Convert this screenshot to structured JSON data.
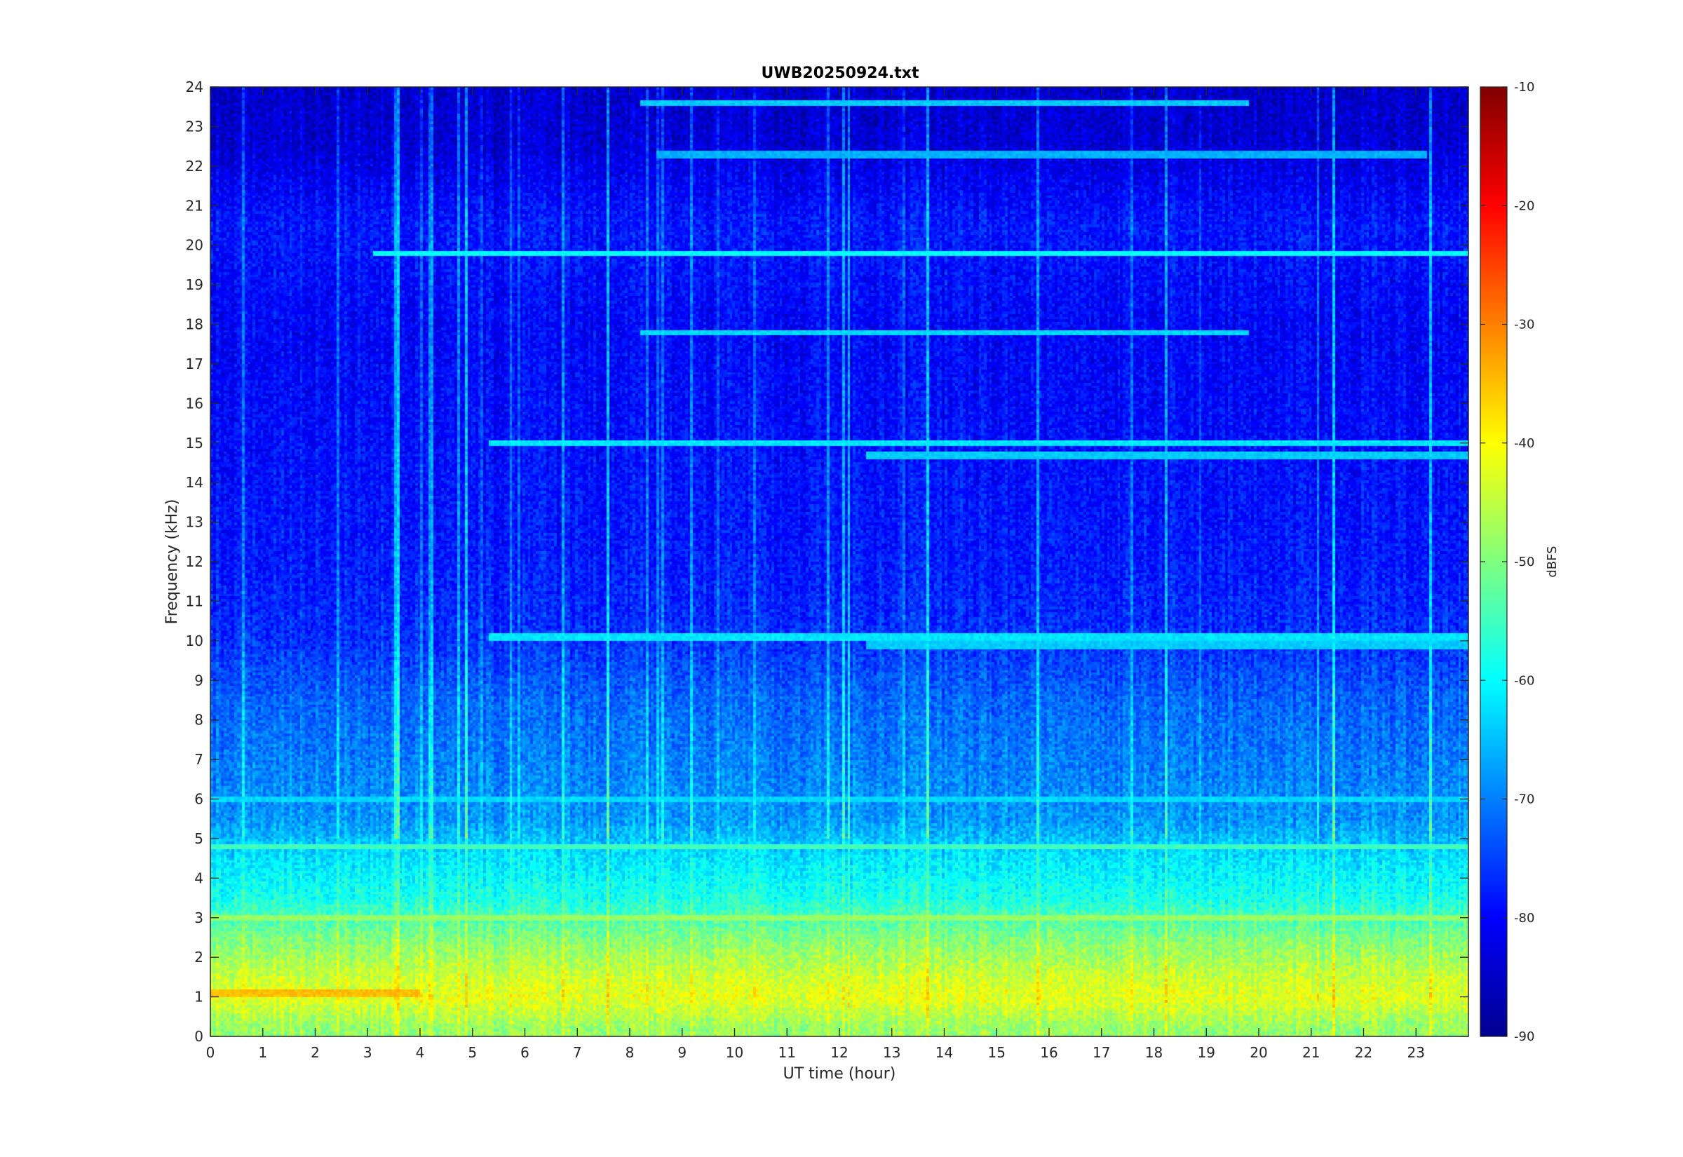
{
  "chart_data": {
    "type": "heatmap",
    "title": "UWB20250924.txt",
    "xlabel": "UT time (hour)",
    "ylabel": "Frequency (kHz)",
    "xlim": [
      0,
      24
    ],
    "ylim": [
      0,
      24
    ],
    "x_ticks": [
      "0",
      "1",
      "2",
      "3",
      "4",
      "5",
      "6",
      "7",
      "8",
      "9",
      "10",
      "11",
      "12",
      "13",
      "14",
      "15",
      "16",
      "17",
      "18",
      "19",
      "20",
      "21",
      "22",
      "23"
    ],
    "y_ticks": [
      "0",
      "1",
      "2",
      "3",
      "4",
      "5",
      "6",
      "7",
      "8",
      "9",
      "10",
      "11",
      "12",
      "13",
      "14",
      "15",
      "16",
      "17",
      "18",
      "19",
      "20",
      "21",
      "22",
      "23",
      "24"
    ],
    "colorbar": {
      "label": "dBFS",
      "range": [
        -90,
        -10
      ],
      "ticks": [
        "-10",
        "-20",
        "-30",
        "-40",
        "-50",
        "-60",
        "-70",
        "-80",
        "-90"
      ],
      "colormap": "jet"
    },
    "frequency_profile_dbfs": [
      {
        "freq_khz": 0.25,
        "level": -48
      },
      {
        "freq_khz": 1.0,
        "level": -42
      },
      {
        "freq_khz": 1.5,
        "level": -44
      },
      {
        "freq_khz": 2.5,
        "level": -50
      },
      {
        "freq_khz": 3.5,
        "level": -58
      },
      {
        "freq_khz": 4.5,
        "level": -62
      },
      {
        "freq_khz": 5.5,
        "level": -68
      },
      {
        "freq_khz": 7,
        "level": -70
      },
      {
        "freq_khz": 8.5,
        "level": -72
      },
      {
        "freq_khz": 10,
        "level": -76
      },
      {
        "freq_khz": 12,
        "level": -78
      },
      {
        "freq_khz": 15,
        "level": -79
      },
      {
        "freq_khz": 18,
        "level": -80
      },
      {
        "freq_khz": 20.5,
        "level": -78
      },
      {
        "freq_khz": 22.5,
        "level": -83
      },
      {
        "freq_khz": 24,
        "level": -84
      }
    ],
    "narrowband_lines": [
      {
        "freq_khz": 19.8,
        "t_start": 3.1,
        "t_end": 24,
        "level": -60
      },
      {
        "freq_khz": 17.8,
        "t_start": 8.2,
        "t_end": 19.8,
        "level": -63
      },
      {
        "freq_khz": 23.6,
        "t_start": 8.2,
        "t_end": 19.8,
        "level": -64
      },
      {
        "freq_khz": 22.3,
        "t_start": 8.5,
        "t_end": 23.2,
        "level": -66
      },
      {
        "freq_khz": 15.0,
        "t_start": 5.3,
        "t_end": 24,
        "level": -62
      },
      {
        "freq_khz": 14.7,
        "t_start": 12.5,
        "t_end": 24,
        "level": -64
      },
      {
        "freq_khz": 10.1,
        "t_start": 5.3,
        "t_end": 24,
        "level": -62
      },
      {
        "freq_khz": 9.9,
        "t_start": 12.5,
        "t_end": 24,
        "level": -64
      },
      {
        "freq_khz": 6.0,
        "t_start": 0,
        "t_end": 24,
        "level": -63
      },
      {
        "freq_khz": 4.8,
        "t_start": 0,
        "t_end": 24,
        "level": -55
      },
      {
        "freq_khz": 3.0,
        "t_start": 0,
        "t_end": 24,
        "level": -48
      },
      {
        "freq_khz": 1.1,
        "t_start": 0,
        "t_end": 4,
        "level": -35
      }
    ]
  }
}
